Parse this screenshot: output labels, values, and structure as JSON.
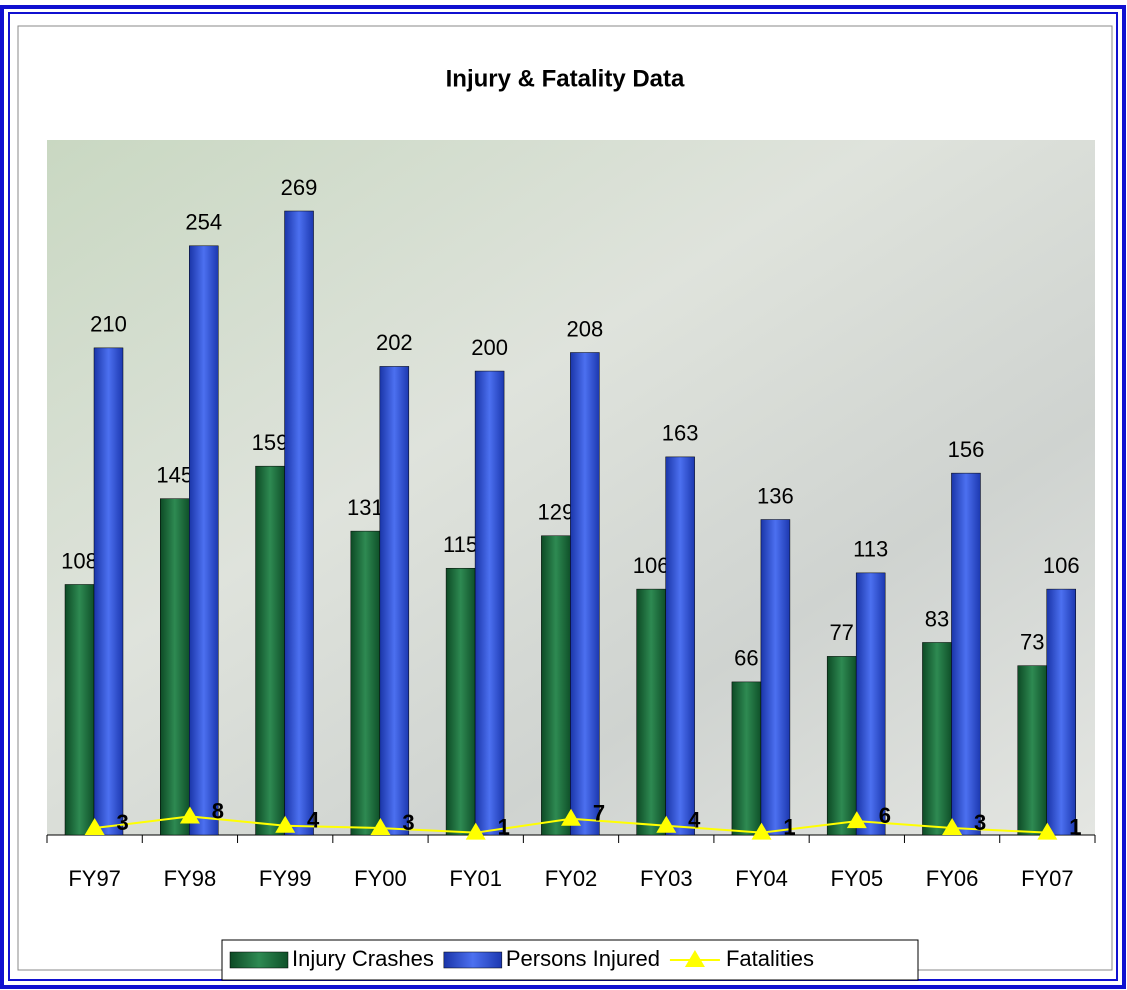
{
  "chart_data": {
    "type": "bar",
    "title": "Injury & Fatality Data",
    "categories": [
      "FY97",
      "FY98",
      "FY99",
      "FY00",
      "FY01",
      "FY02",
      "FY03",
      "FY04",
      "FY05",
      "FY06",
      "FY07"
    ],
    "series": [
      {
        "name": "Injury Crashes",
        "color": "#1f6e3e",
        "values": [
          108,
          145,
          159,
          131,
          115,
          129,
          106,
          66,
          77,
          83,
          73
        ]
      },
      {
        "name": "Persons Injured",
        "color": "#2b4fd8",
        "values": [
          210,
          254,
          269,
          202,
          200,
          208,
          163,
          136,
          113,
          156,
          106
        ]
      },
      {
        "name": "Fatalities",
        "color": "#ffff00",
        "type": "line",
        "values": [
          3,
          8,
          4,
          3,
          1,
          7,
          4,
          1,
          6,
          3,
          1
        ]
      }
    ],
    "legend": "bottom"
  }
}
